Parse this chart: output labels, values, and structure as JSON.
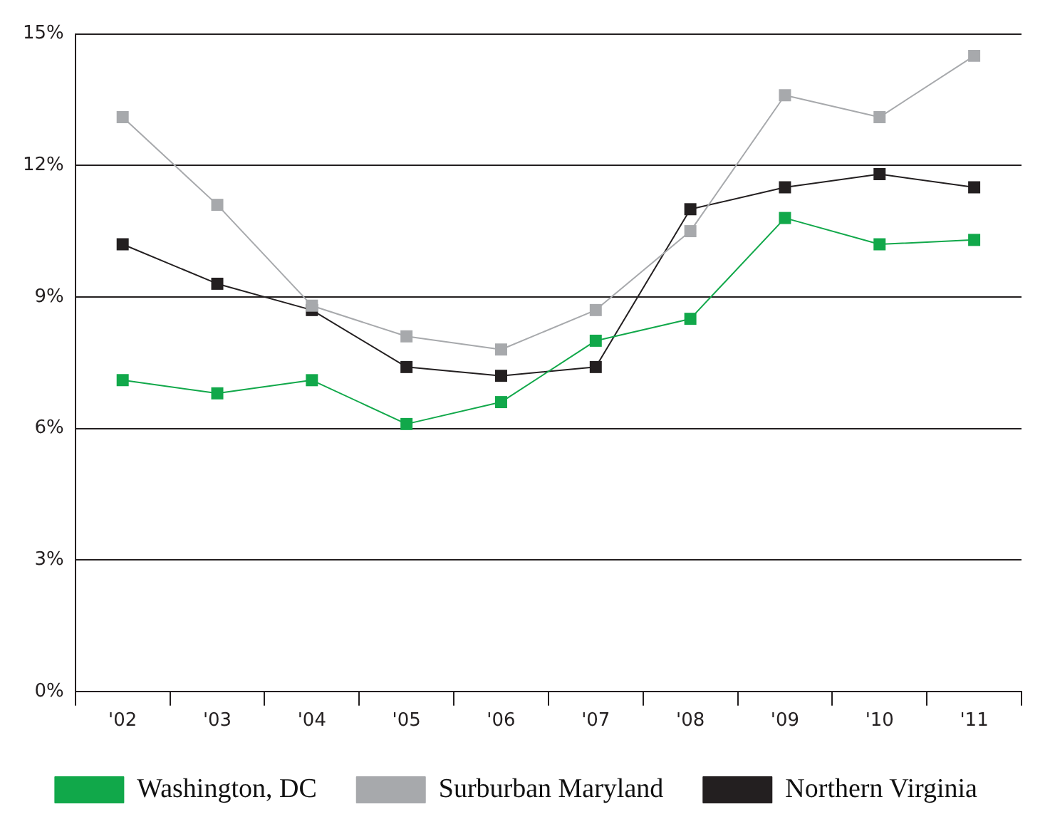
{
  "chart_data": {
    "type": "line",
    "categories": [
      "'02",
      "'03",
      "'04",
      "'05",
      "'06",
      "'07",
      "'08",
      "'09",
      "'10",
      "'11"
    ],
    "series": [
      {
        "name": "Washington, DC",
        "color": "#11a84a",
        "values": [
          7.1,
          6.8,
          7.1,
          6.1,
          6.6,
          8.0,
          8.5,
          10.8,
          10.2,
          10.3
        ]
      },
      {
        "name": "Surburban Maryland",
        "color": "#a7a9ac",
        "values": [
          13.1,
          11.1,
          8.8,
          8.1,
          7.8,
          8.7,
          10.5,
          13.6,
          13.1,
          14.5
        ]
      },
      {
        "name": "Northern Virginia",
        "color": "#231f20",
        "values": [
          10.2,
          9.3,
          8.7,
          7.4,
          7.2,
          7.4,
          11.0,
          11.5,
          11.8,
          11.5
        ]
      }
    ],
    "ylim": [
      0,
      15
    ],
    "yticks": [
      {
        "value": 0,
        "label": "0%"
      },
      {
        "value": 3,
        "label": "3%"
      },
      {
        "value": 6,
        "label": "6%"
      },
      {
        "value": 9,
        "label": "9%"
      },
      {
        "value": 12,
        "label": "12%"
      },
      {
        "value": 15,
        "label": "15%"
      }
    ],
    "grid": "y",
    "legend": "bottom",
    "marker": "square",
    "line_style": "solid"
  }
}
